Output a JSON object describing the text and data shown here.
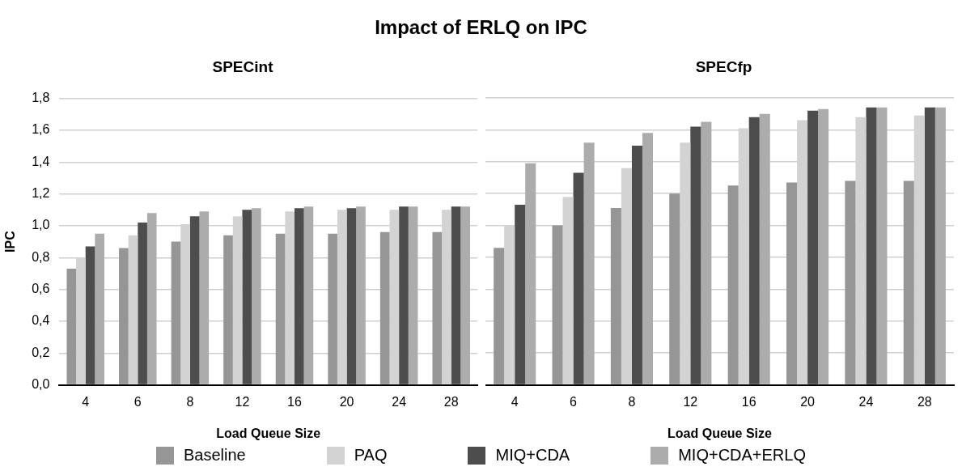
{
  "chart_data": [
    {
      "type": "bar",
      "title": "Impact of ERLQ on IPC",
      "subtitle": "SPECint",
      "xlabel": "Load Queue Size",
      "ylabel": "IPC",
      "categories": [
        "4",
        "6",
        "8",
        "12",
        "16",
        "20",
        "24",
        "28"
      ],
      "series": [
        {
          "name": "Baseline",
          "color": "#969696",
          "values": [
            0.73,
            0.86,
            0.9,
            0.94,
            0.95,
            0.95,
            0.96,
            0.96
          ]
        },
        {
          "name": "PAQ",
          "color": "#d3d3d3",
          "values": [
            0.8,
            0.94,
            1.01,
            1.06,
            1.09,
            1.1,
            1.1,
            1.1
          ]
        },
        {
          "name": "MIQ+CDA",
          "color": "#4d4d4d",
          "values": [
            0.87,
            1.02,
            1.06,
            1.1,
            1.11,
            1.11,
            1.12,
            1.12
          ]
        },
        {
          "name": "MIQ+CDA+ERLQ",
          "color": "#acacac",
          "values": [
            0.95,
            1.08,
            1.09,
            1.11,
            1.12,
            1.12,
            1.12,
            1.12
          ]
        }
      ],
      "ylim": [
        0,
        1.8
      ],
      "yticks": [
        {
          "value": 0,
          "label": "0,0"
        },
        {
          "value": 0.2,
          "label": "0,2"
        },
        {
          "value": 0.4,
          "label": "0,4"
        },
        {
          "value": 0.6,
          "label": "0,6"
        },
        {
          "value": 0.8,
          "label": "0,8"
        },
        {
          "value": 1.0,
          "label": "1,0"
        },
        {
          "value": 1.2,
          "label": "1,2"
        },
        {
          "value": 1.4,
          "label": "1,4"
        },
        {
          "value": 1.6,
          "label": "1,6"
        },
        {
          "value": 1.8,
          "label": "1,8"
        }
      ],
      "grid": "y",
      "legend": "bottom"
    },
    {
      "type": "bar",
      "title": "SPECfp",
      "xlabel": "Load Queue Size",
      "categories": [
        "4",
        "6",
        "8",
        "12",
        "16",
        "20",
        "24",
        "28"
      ],
      "series": [
        {
          "color": "#969696",
          "values": [
            0.86,
            1.0,
            1.11,
            1.2,
            1.25,
            1.27,
            1.28,
            1.28
          ]
        },
        {
          "color": "#d3d3d3",
          "values": [
            1.0,
            1.18,
            1.36,
            1.52,
            1.61,
            1.66,
            1.68,
            1.69
          ]
        },
        {
          "color": "#4d4d4d",
          "values": [
            1.13,
            1.33,
            1.5,
            1.62,
            1.68,
            1.72,
            1.74,
            1.74
          ]
        },
        {
          "color": "#acacac",
          "values": [
            1.39,
            1.52,
            1.58,
            1.65,
            1.7,
            1.73,
            1.74,
            1.74
          ]
        }
      ],
      "ylim": [
        0,
        1.8
      ],
      "yticks": [
        0,
        0.2,
        0.4,
        0.6,
        0.8,
        1.0,
        1.2,
        1.4,
        1.6,
        1.8
      ],
      "grid": "y",
      "tick_labels": "x"
    }
  ]
}
